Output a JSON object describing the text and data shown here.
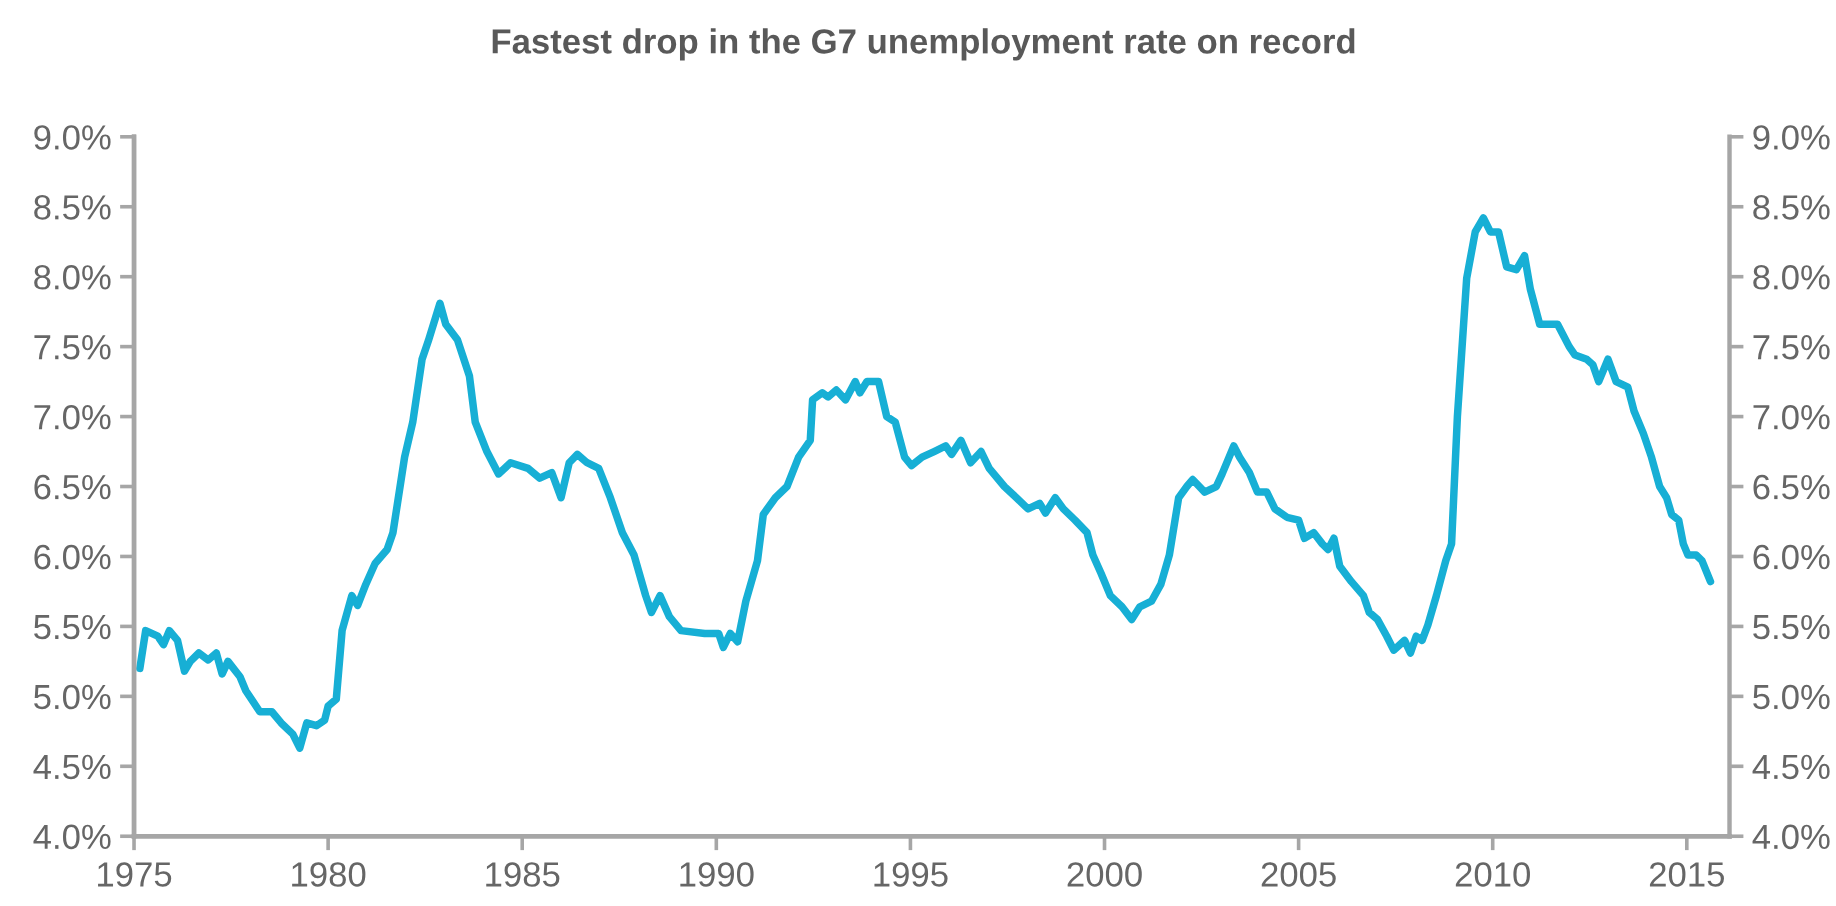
{
  "chart_data": {
    "type": "line",
    "title": "Fastest drop in the G7 unemployment rate on record",
    "x": [
      1975.15,
      1975.3,
      1975.61,
      1975.76,
      1975.91,
      1976.12,
      1976.3,
      1976.45,
      1976.67,
      1976.91,
      1977.12,
      1977.27,
      1977.42,
      1977.73,
      1977.88,
      1978.24,
      1978.55,
      1978.79,
      1979.09,
      1979.27,
      1979.45,
      1979.7,
      1979.91,
      1980.0,
      1980.21,
      1980.36,
      1980.61,
      1980.76,
      1980.97,
      1981.21,
      1981.52,
      1981.67,
      1981.97,
      1982.18,
      1982.42,
      1982.58,
      1982.88,
      1983.03,
      1983.33,
      1983.64,
      1983.79,
      1984.09,
      1984.39,
      1984.7,
      1985.15,
      1985.45,
      1985.76,
      1986.0,
      1986.21,
      1986.42,
      1986.67,
      1986.97,
      1987.27,
      1987.58,
      1987.88,
      1988.18,
      1988.33,
      1988.55,
      1988.79,
      1989.09,
      1989.7,
      1990.06,
      1990.18,
      1990.36,
      1990.55,
      1990.76,
      1991.06,
      1991.21,
      1991.52,
      1991.82,
      1992.12,
      1992.42,
      1992.48,
      1992.73,
      1992.88,
      1993.09,
      1993.33,
      1993.58,
      1993.7,
      1993.88,
      1994.18,
      1994.39,
      1994.61,
      1994.85,
      1995.03,
      1995.3,
      1995.61,
      1995.91,
      1996.06,
      1996.3,
      1996.55,
      1996.82,
      1997.03,
      1997.42,
      1997.73,
      1998.03,
      1998.33,
      1998.48,
      1998.73,
      1998.94,
      1999.24,
      1999.55,
      1999.7,
      1999.91,
      2000.15,
      2000.45,
      2000.7,
      2000.91,
      2001.21,
      2001.45,
      2001.67,
      2001.91,
      2002.12,
      2002.27,
      2002.58,
      2002.88,
      2003.03,
      2003.33,
      2003.48,
      2003.73,
      2003.94,
      2004.18,
      2004.39,
      2004.7,
      2005.0,
      2005.15,
      2005.39,
      2005.61,
      2005.76,
      2005.91,
      2006.06,
      2006.36,
      2006.67,
      2006.82,
      2007.03,
      2007.27,
      2007.45,
      2007.73,
      2007.88,
      2008.03,
      2008.18,
      2008.33,
      2008.55,
      2008.79,
      2008.94,
      2009.09,
      2009.33,
      2009.55,
      2009.76,
      2009.94,
      2010.15,
      2010.36,
      2010.61,
      2010.82,
      2010.97,
      2011.21,
      2011.67,
      2011.97,
      2012.12,
      2012.42,
      2012.58,
      2012.73,
      2012.97,
      2013.18,
      2013.48,
      2013.64,
      2013.88,
      2014.09,
      2014.3,
      2014.48,
      2014.61,
      2014.79,
      2014.91,
      2015.03,
      2015.24,
      2015.39,
      2015.61
    ],
    "series": [
      {
        "color": "#17afd5",
        "values": [
          5.2,
          5.47,
          5.43,
          5.37,
          5.47,
          5.4,
          5.18,
          5.25,
          5.31,
          5.26,
          5.31,
          5.16,
          5.25,
          5.14,
          5.04,
          4.89,
          4.89,
          4.81,
          4.73,
          4.63,
          4.81,
          4.79,
          4.83,
          4.93,
          4.98,
          5.47,
          5.72,
          5.65,
          5.8,
          5.95,
          6.05,
          6.17,
          6.71,
          6.96,
          7.41,
          7.54,
          7.81,
          7.66,
          7.55,
          7.29,
          6.96,
          6.75,
          6.59,
          6.67,
          6.63,
          6.56,
          6.6,
          6.42,
          6.67,
          6.73,
          6.67,
          6.63,
          6.42,
          6.17,
          6.01,
          5.72,
          5.6,
          5.72,
          5.57,
          5.47,
          5.45,
          5.45,
          5.35,
          5.45,
          5.39,
          5.68,
          5.97,
          6.3,
          6.42,
          6.5,
          6.71,
          6.83,
          7.12,
          7.17,
          7.14,
          7.19,
          7.12,
          7.25,
          7.17,
          7.25,
          7.25,
          7.0,
          6.96,
          6.71,
          6.65,
          6.71,
          6.75,
          6.79,
          6.73,
          6.83,
          6.67,
          6.75,
          6.63,
          6.5,
          6.42,
          6.34,
          6.38,
          6.31,
          6.42,
          6.34,
          6.26,
          6.17,
          6.01,
          5.88,
          5.72,
          5.64,
          5.55,
          5.64,
          5.68,
          5.8,
          6.01,
          6.42,
          6.5,
          6.55,
          6.46,
          6.5,
          6.59,
          6.79,
          6.71,
          6.6,
          6.46,
          6.46,
          6.34,
          6.28,
          6.26,
          6.13,
          6.17,
          6.09,
          6.05,
          6.13,
          5.93,
          5.82,
          5.72,
          5.6,
          5.55,
          5.43,
          5.33,
          5.4,
          5.31,
          5.43,
          5.4,
          5.51,
          5.72,
          5.97,
          6.09,
          7.0,
          7.99,
          8.32,
          8.42,
          8.32,
          8.32,
          8.07,
          8.05,
          8.15,
          7.91,
          7.66,
          7.66,
          7.5,
          7.44,
          7.41,
          7.37,
          7.25,
          7.41,
          7.25,
          7.21,
          7.04,
          6.88,
          6.71,
          6.5,
          6.42,
          6.3,
          6.26,
          6.09,
          6.01,
          6.01,
          5.97,
          5.82
        ]
      }
    ],
    "xlim": [
      1975,
      2016.1
    ],
    "xticks": [
      1975,
      1980,
      1985,
      1990,
      1995,
      2000,
      2005,
      2010,
      2015
    ],
    "ylim": [
      4,
      9
    ],
    "yticks": [
      {
        "value": 4,
        "label": "4.0%"
      },
      {
        "value": 4.5,
        "label": "4.5%"
      },
      {
        "value": 5,
        "label": "5.0%"
      },
      {
        "value": 5.5,
        "label": "5.5%"
      },
      {
        "value": 6,
        "label": "6.0%"
      },
      {
        "value": 6.5,
        "label": "6.5%"
      },
      {
        "value": 7,
        "label": "7.0%"
      },
      {
        "value": 7.5,
        "label": "7.5%"
      },
      {
        "value": 8,
        "label": "8.0%"
      },
      {
        "value": 8.5,
        "label": "8.5%"
      },
      {
        "value": 9,
        "label": "9.0%"
      }
    ],
    "y2lim": [
      4,
      9
    ],
    "y2ticks": [
      {
        "value": 4,
        "label": "4.0%"
      },
      {
        "value": 4.5,
        "label": "4.5%"
      },
      {
        "value": 5,
        "label": "5.0%"
      },
      {
        "value": 5.5,
        "label": "5.5%"
      },
      {
        "value": 6,
        "label": "6.0%"
      },
      {
        "value": 6.5,
        "label": "6.5%"
      },
      {
        "value": 7,
        "label": "7.0%"
      },
      {
        "value": 7.5,
        "label": "7.5%"
      },
      {
        "value": 8,
        "label": "8.0%"
      },
      {
        "value": 8.5,
        "label": "8.5%"
      },
      {
        "value": 9,
        "label": "9.0%"
      }
    ],
    "grid": false,
    "line_style": "solid"
  }
}
